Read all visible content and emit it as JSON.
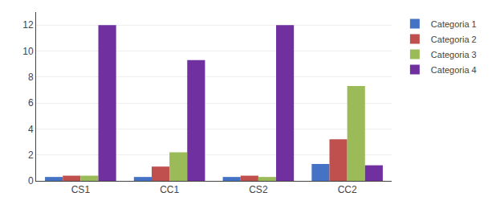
{
  "chart_data": {
    "type": "bar",
    "categories": [
      "CS1",
      "CC1",
      "CS2",
      "CC2"
    ],
    "series": [
      {
        "name": "Categoria 1",
        "color": "#4472C4",
        "values": [
          0.3,
          0.3,
          0.3,
          1.3
        ]
      },
      {
        "name": "Categoria 2",
        "color": "#C0504D",
        "values": [
          0.4,
          1.1,
          0.4,
          3.2
        ]
      },
      {
        "name": "Categoria 3",
        "color": "#9BBB59",
        "values": [
          0.4,
          2.2,
          0.3,
          7.3
        ]
      },
      {
        "name": "Categoria 4",
        "color": "#7030A0",
        "values": [
          12.0,
          9.3,
          12.0,
          1.2
        ]
      }
    ],
    "ylim": [
      0,
      13
    ],
    "yticks": [
      0,
      2,
      4,
      6,
      8,
      10,
      12
    ],
    "grid": true,
    "legend": "upper right"
  }
}
